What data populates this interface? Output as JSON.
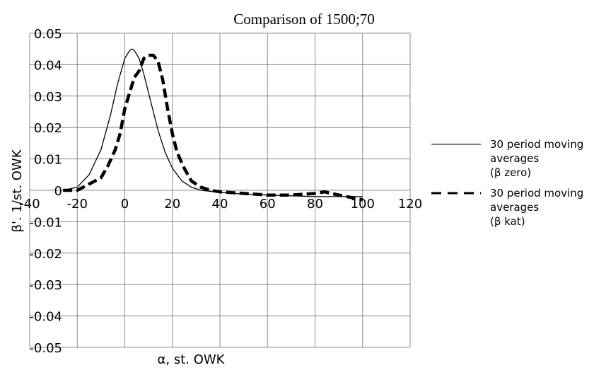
{
  "chart_data": {
    "type": "line",
    "title": "Comparison of 1500;70",
    "xlabel": "α, st. OWK",
    "ylabel": "β'. 1/st. OWK",
    "xlim": [
      -40,
      120
    ],
    "ylim": [
      -0.05,
      0.05
    ],
    "x_ticks": [
      -40,
      -20,
      0,
      20,
      40,
      60,
      80,
      100,
      120
    ],
    "x_tick_labels": [
      "-40",
      "-20",
      "0",
      "20",
      "40",
      "60",
      "80",
      "100",
      "120"
    ],
    "y_ticks": [
      0.05,
      0.04,
      0.03,
      0.02,
      0.01,
      0,
      -0.01,
      -0.02,
      -0.03,
      -0.04,
      -0.05
    ],
    "y_tick_labels": [
      "0.05",
      "0.04",
      "0.03",
      "0.02",
      "0.01",
      "0",
      "-0.01",
      "-0.02",
      "-0.03",
      "-0.04",
      "-0.05"
    ],
    "grid": true,
    "legend_position": "right",
    "series": [
      {
        "name_lines": [
          "30 period moving",
          "averages",
          "(β zero)"
        ],
        "style": "solid",
        "color": "#000000",
        "x": [
          -26,
          -20,
          -15,
          -10,
          -6,
          -3,
          0,
          2,
          3,
          4,
          6,
          8,
          10,
          12,
          14,
          17,
          20,
          24,
          28,
          32,
          38,
          45,
          60,
          80,
          100
        ],
        "y": [
          0.0,
          0.001,
          0.005,
          0.013,
          0.024,
          0.034,
          0.042,
          0.0445,
          0.045,
          0.0445,
          0.042,
          0.037,
          0.031,
          0.025,
          0.019,
          0.012,
          0.007,
          0.003,
          0.001,
          0.0,
          -0.0005,
          -0.001,
          -0.0015,
          -0.002,
          -0.002
        ]
      },
      {
        "name_lines": [
          "30 period moving",
          "averages",
          "(β kat)"
        ],
        "style": "dashed",
        "color": "#000000",
        "x": [
          -26,
          -20,
          -15,
          -10,
          -7,
          -4,
          -2,
          0,
          2,
          4,
          6,
          8,
          10,
          12,
          14,
          16,
          18,
          20,
          22,
          25,
          28,
          32,
          36,
          40,
          50,
          60,
          70,
          80,
          84,
          90,
          100
        ],
        "y": [
          0.0,
          0.0,
          0.002,
          0.004,
          0.008,
          0.013,
          0.018,
          0.026,
          0.031,
          0.036,
          0.038,
          0.042,
          0.043,
          0.043,
          0.041,
          0.035,
          0.026,
          0.018,
          0.012,
          0.007,
          0.003,
          0.001,
          0.0,
          -0.0005,
          -0.001,
          -0.0015,
          -0.0015,
          -0.001,
          -0.0005,
          -0.0015,
          -0.003
        ]
      }
    ]
  }
}
